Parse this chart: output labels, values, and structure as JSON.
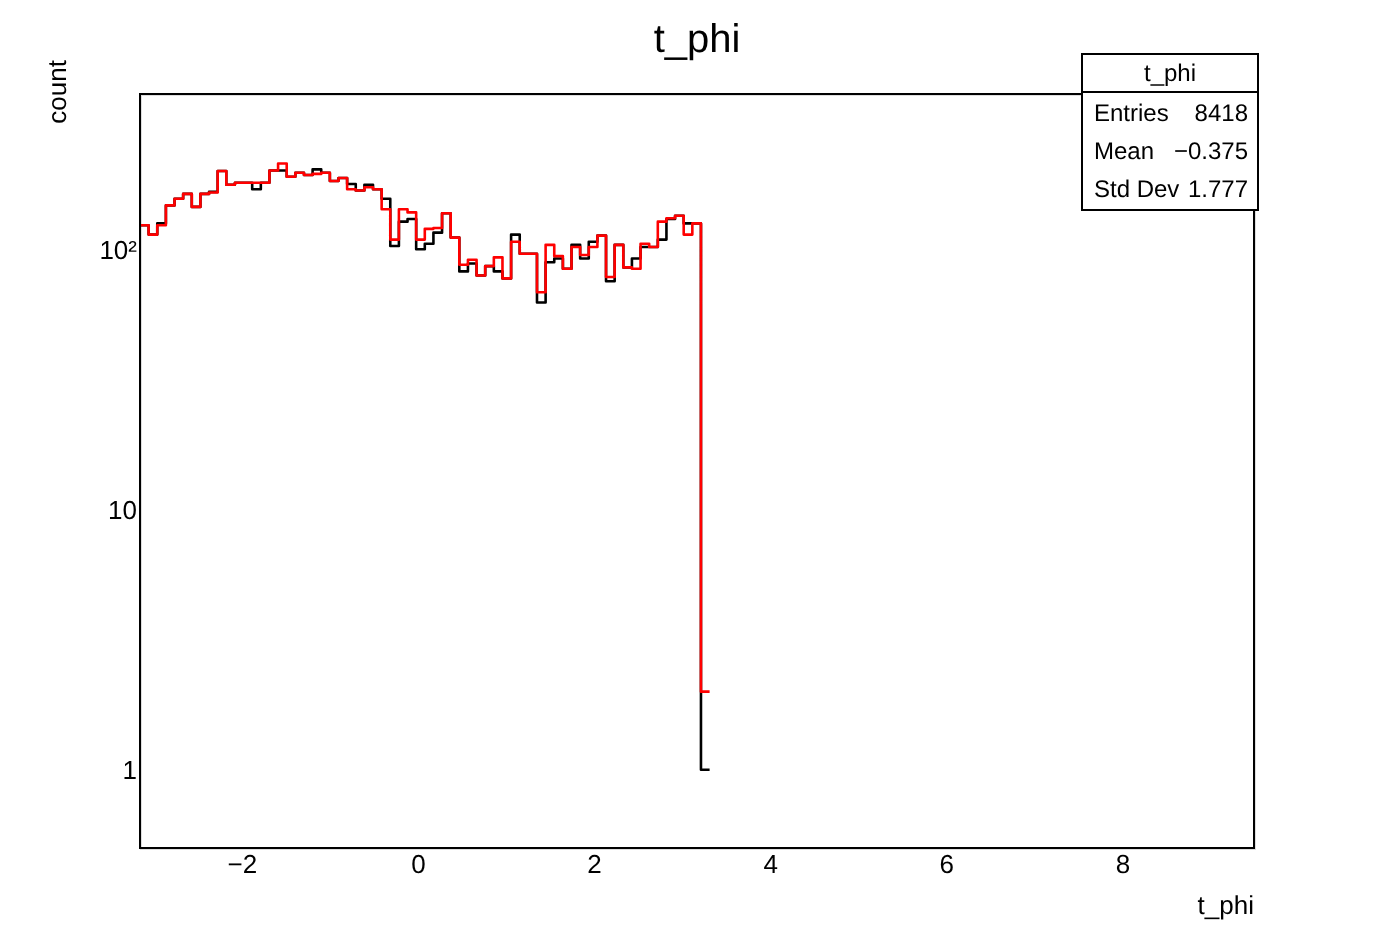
{
  "chart_data": {
    "type": "histogram",
    "title": "t_phi",
    "xlabel": "t_phi",
    "ylabel": "count",
    "bins": [
      -3.15,
      -3.052,
      -2.954,
      -2.856,
      -2.758,
      -2.66,
      -2.562,
      -2.464,
      -2.366,
      -2.268,
      -2.17,
      -2.072,
      -1.974,
      -1.876,
      -1.778,
      -1.68,
      -1.582,
      -1.484,
      -1.386,
      -1.288,
      -1.19,
      -1.092,
      -0.994,
      -0.896,
      -0.798,
      -0.7,
      -0.602,
      -0.504,
      -0.406,
      -0.308,
      -0.21,
      -0.112,
      -0.014,
      0.084,
      0.182,
      0.28,
      0.378,
      0.476,
      0.574,
      0.672,
      0.77,
      0.868,
      0.966,
      1.064,
      1.162,
      1.26,
      1.358,
      1.456,
      1.554,
      1.652,
      1.75,
      1.848,
      1.946,
      2.044,
      2.142,
      2.24,
      2.338,
      2.436,
      2.534,
      2.632,
      2.73,
      2.828,
      2.926,
      3.024,
      3.122,
      3.22,
      3.318
    ],
    "series": [
      {
        "color": "#000000",
        "values": [
          125,
          115,
          127,
          149,
          158,
          165,
          147,
          165,
          168,
          202,
          179,
          182,
          182,
          172,
          182,
          203,
          203,
          192,
          199,
          195,
          205,
          199,
          185,
          190,
          180,
          170,
          179,
          172,
          158,
          104,
          129,
          132,
          101,
          106,
          117,
          139,
          112,
          83,
          89,
          80,
          87,
          83,
          78,
          115,
          97,
          97,
          63,
          90,
          93,
          85,
          105,
          93,
          108,
          114,
          76,
          105,
          86,
          93,
          103,
          103,
          110,
          132,
          136,
          127,
          127,
          1
        ]
      },
      {
        "color": "#ff0000",
        "values": [
          125,
          115,
          125,
          149,
          158,
          165,
          147,
          165,
          167,
          202,
          179,
          182,
          182,
          182,
          182,
          203,
          216,
          192,
          199,
          195,
          197,
          199,
          185,
          190,
          172,
          170,
          175,
          172,
          144,
          110,
          144,
          140,
          110,
          121,
          122,
          139,
          112,
          88,
          92,
          80,
          87,
          94,
          78,
          108,
          97,
          97,
          69,
          105,
          95,
          85,
          103,
          96,
          103,
          114,
          79,
          105,
          86,
          85,
          106,
          103,
          129,
          133,
          136,
          115,
          127,
          2
        ]
      }
    ],
    "log": "y",
    "xlim": [
      -3.15,
      9.5
    ],
    "xticks": [
      -2,
      0,
      2,
      4,
      6,
      8
    ],
    "ylim": [
      0.5,
      400
    ],
    "yticks": [
      1,
      10,
      {
        "value": 100,
        "label": "10²"
      }
    ],
    "grid": false,
    "annotations": [
      "t_phi",
      "Entries 8418",
      "Mean −0.375",
      "Std Dev 1.777"
    ]
  }
}
